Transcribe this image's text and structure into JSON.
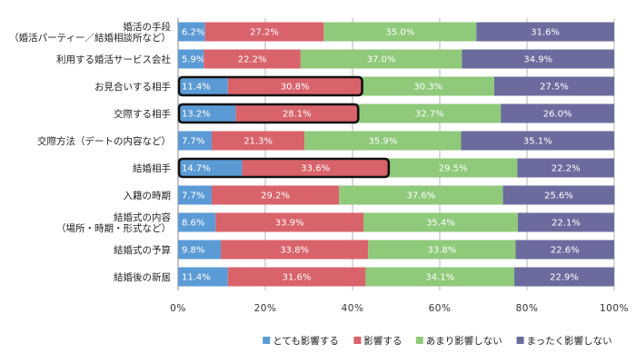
{
  "chart_data": {
    "type": "bar",
    "orientation": "horizontal",
    "stacked": "percent",
    "categories": [
      [
        "婚活の手段",
        "（婚活パーティー／結婚相談所など）"
      ],
      [
        "利用する婚活サービス会社"
      ],
      [
        "お見合いする相手"
      ],
      [
        "交際する相手"
      ],
      [
        "交際方法（デートの内容など）"
      ],
      [
        "結婚相手"
      ],
      [
        "入籍の時期"
      ],
      [
        "結婚式の内容",
        "（場所・時期・形式など）"
      ],
      [
        "結婚式の予算"
      ],
      [
        "結婚後の新居"
      ]
    ],
    "series": [
      {
        "name": "とても影響する",
        "color": "#5b9bd5",
        "values": [
          6.2,
          5.9,
          11.4,
          13.2,
          7.7,
          14.7,
          7.7,
          8.6,
          9.8,
          11.4
        ],
        "labels": [
          "6.2%",
          "5.9%",
          "11.4%",
          "13.2%",
          "7.7%",
          "14.7%",
          "7.7%",
          "8.6%",
          "9.8%",
          "11.4%"
        ]
      },
      {
        "name": "影響する",
        "color": "#d9636b",
        "values": [
          27.2,
          22.2,
          30.8,
          28.1,
          21.3,
          33.6,
          29.2,
          33.9,
          33.8,
          31.6
        ],
        "labels": [
          "27.2%",
          "22.2%",
          "30.8%",
          "28.1%",
          "21.3%",
          "33.6%",
          "29.2%",
          "33.9%",
          "33.8%",
          "31.6%"
        ]
      },
      {
        "name": "あまり影響しない",
        "color": "#8fc97a",
        "values": [
          35.0,
          37.0,
          30.3,
          32.7,
          35.9,
          29.5,
          37.6,
          35.4,
          33.8,
          34.1
        ],
        "labels": [
          "35.0%",
          "37.0%",
          "30.3%",
          "32.7%",
          "35.9%",
          "29.5%",
          "37.6%",
          "35.4%",
          "33.8%",
          "34.1%"
        ]
      },
      {
        "name": "まったく影響しない",
        "color": "#6b6b9e",
        "values": [
          31.6,
          34.9,
          27.5,
          26.0,
          35.1,
          22.2,
          25.6,
          22.1,
          22.6,
          22.9
        ],
        "labels": [
          "31.6%",
          "34.9%",
          "27.5%",
          "26.0%",
          "35.1%",
          "22.2%",
          "25.6%",
          "22.1%",
          "22.6%",
          "22.9%"
        ]
      }
    ],
    "highlighted_categories": [
      2,
      3,
      5
    ],
    "highlighted_series": [
      0,
      1
    ],
    "xlim": [
      0,
      100
    ],
    "xticks": [
      "0%",
      "20%",
      "40%",
      "60%",
      "80%",
      "100%"
    ],
    "grid": true,
    "legend_position": "bottom-right"
  }
}
